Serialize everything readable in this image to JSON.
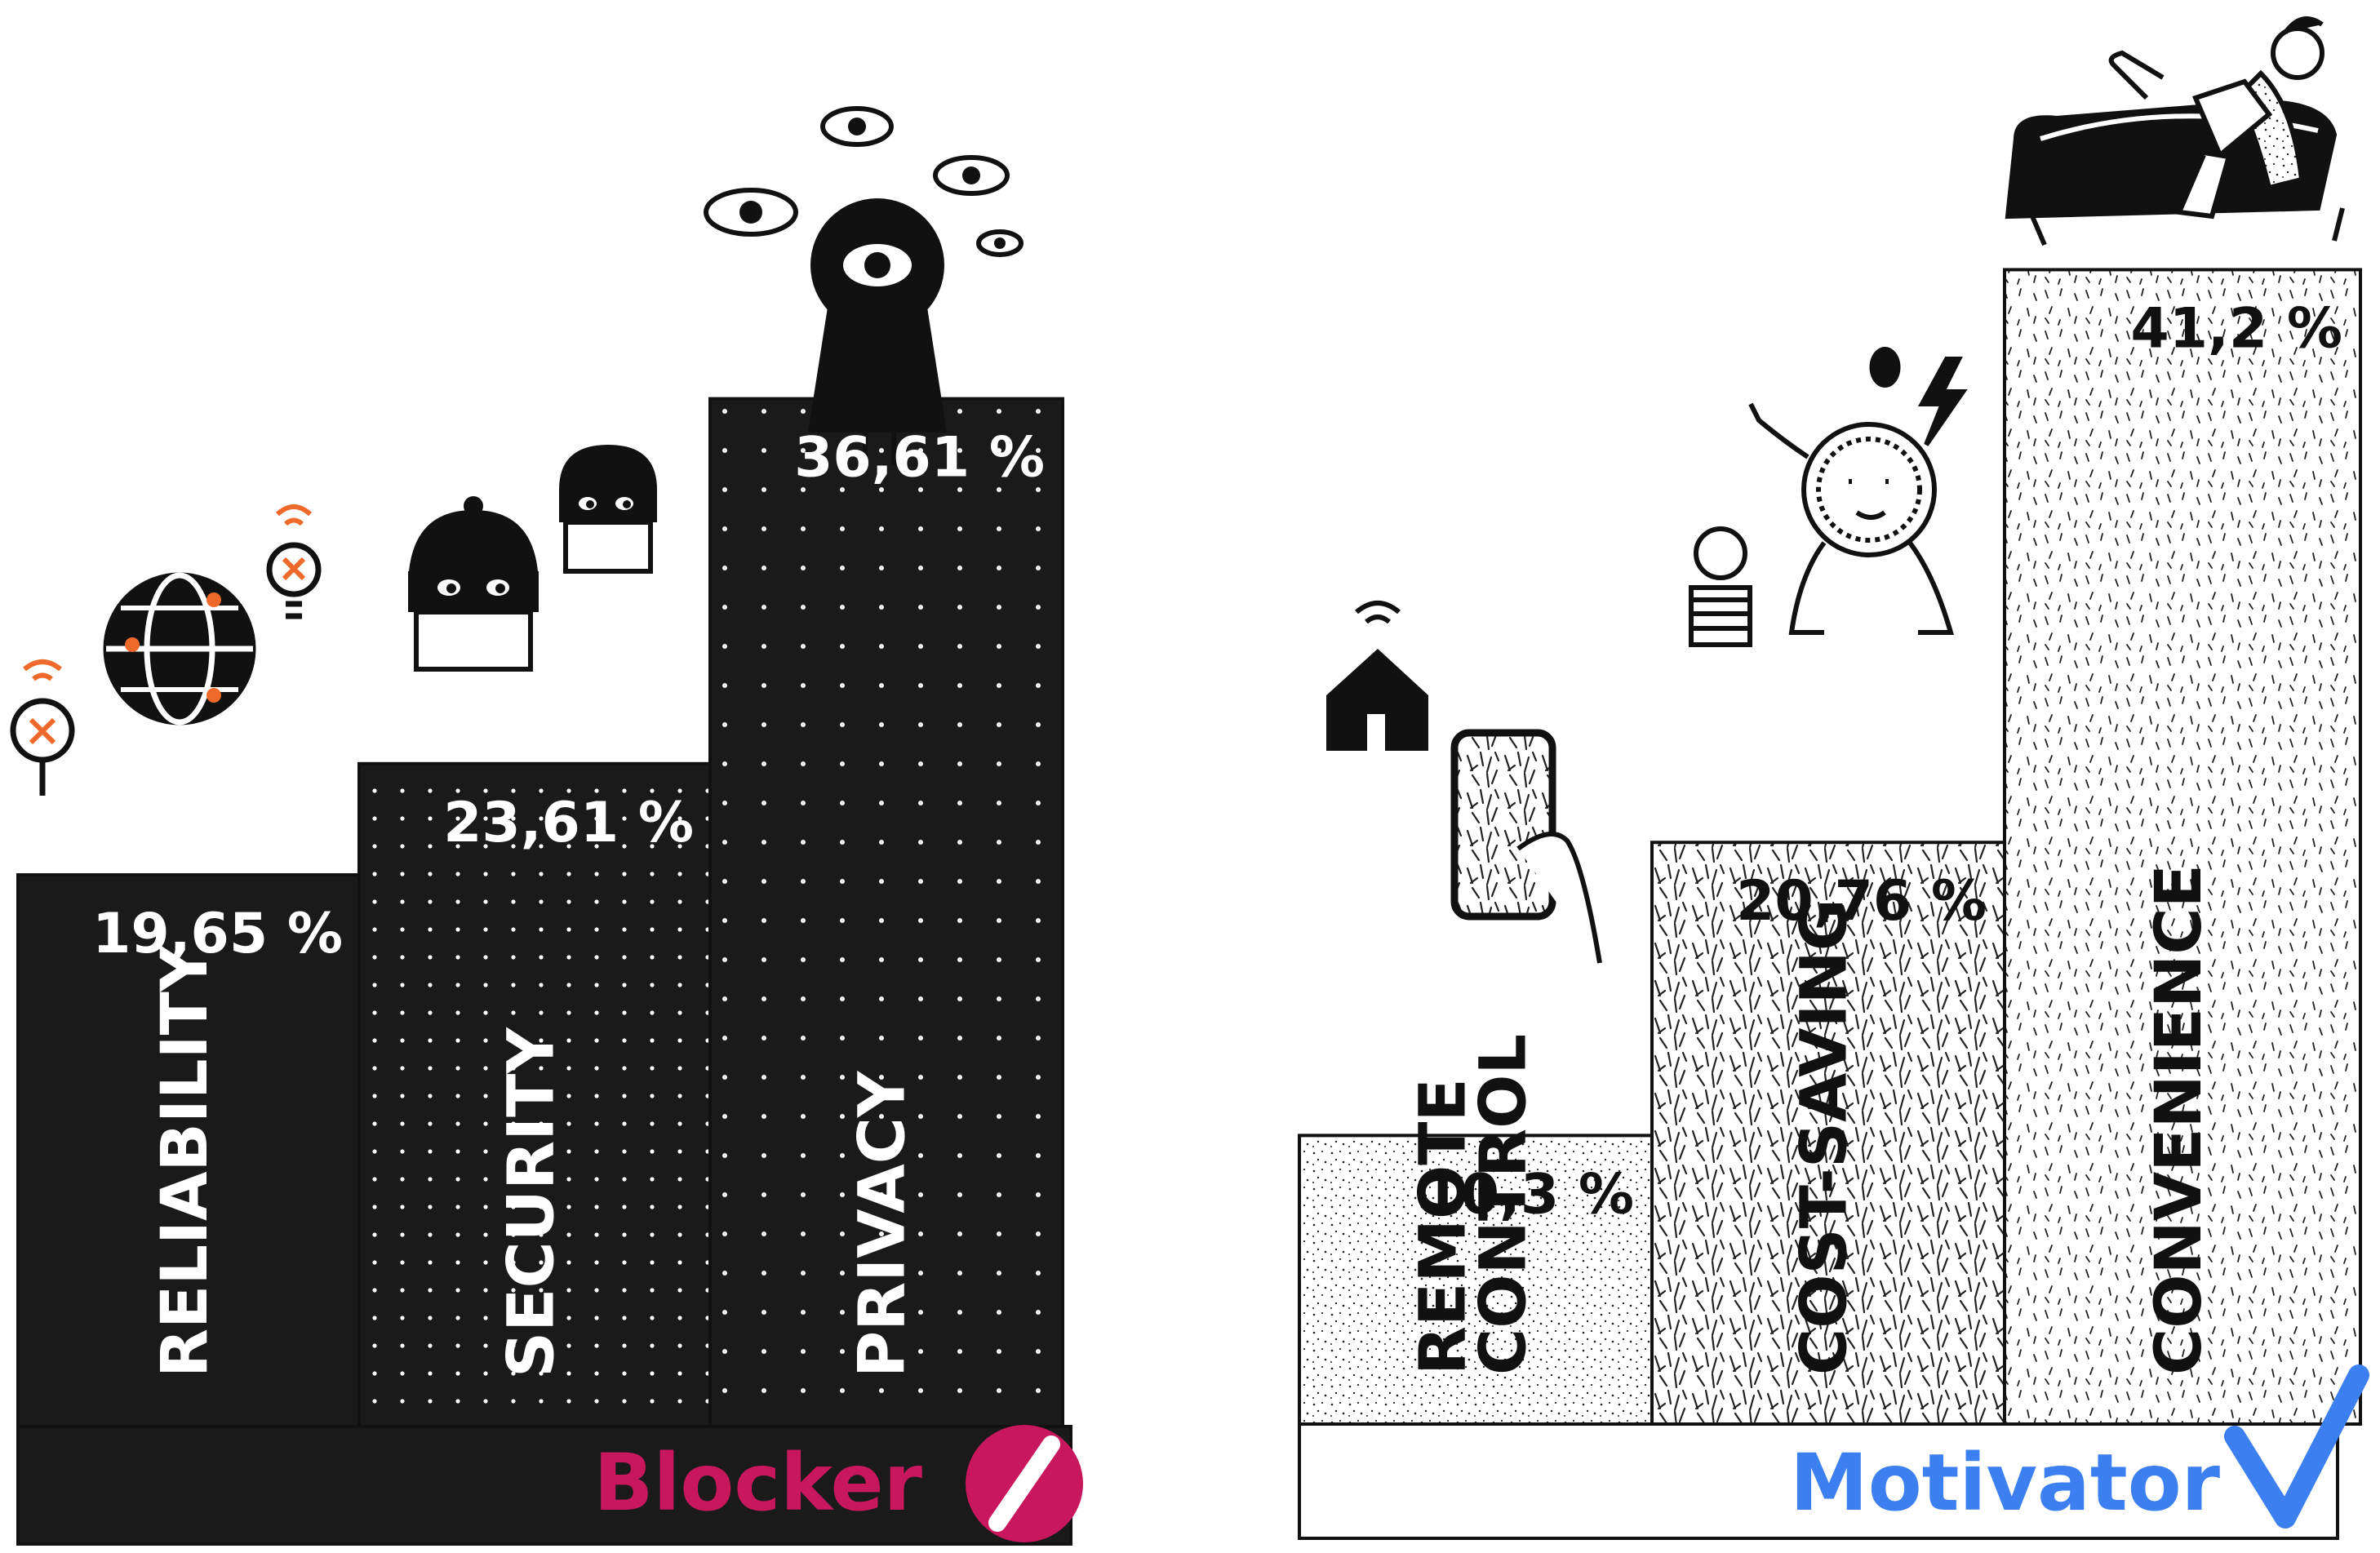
{
  "colors": {
    "blocker_accent": "#c8175d",
    "motivator_accent": "#3b7ff0",
    "dark_bar": "#1a1a1a",
    "ink": "#111111",
    "icon_accent": "#ef6a2a"
  },
  "chart_data": [
    {
      "type": "bar",
      "group_label": "Blocker",
      "group_icon": "no-entry-icon",
      "categories": [
        "RELIABILITY",
        "SECURITY",
        "PRIVACY"
      ],
      "values": [
        19.65,
        23.61,
        36.61
      ],
      "value_labels": [
        "19,65 %",
        "23,61 %",
        "36,61 %"
      ],
      "unit": "%",
      "ylim": [
        0,
        45
      ],
      "category_icons": [
        "broken-bulb-globe-icon",
        "masked-burglar-icon",
        "keyhole-eye-icon"
      ]
    },
    {
      "type": "bar",
      "group_label": "Motivator",
      "group_icon": "checkmark-icon",
      "categories": [
        "REMOTE CONTROL",
        "COST-SAVING",
        "CONVENIENCE"
      ],
      "values": [
        10.3,
        20.76,
        41.2
      ],
      "value_labels": [
        "10,3 %",
        "20,76 %",
        "41,2 %"
      ],
      "unit": "%",
      "ylim": [
        0,
        45
      ],
      "category_icons": [
        "smart-home-phone-icon",
        "coin-character-icon",
        "lounging-person-icon"
      ]
    }
  ]
}
